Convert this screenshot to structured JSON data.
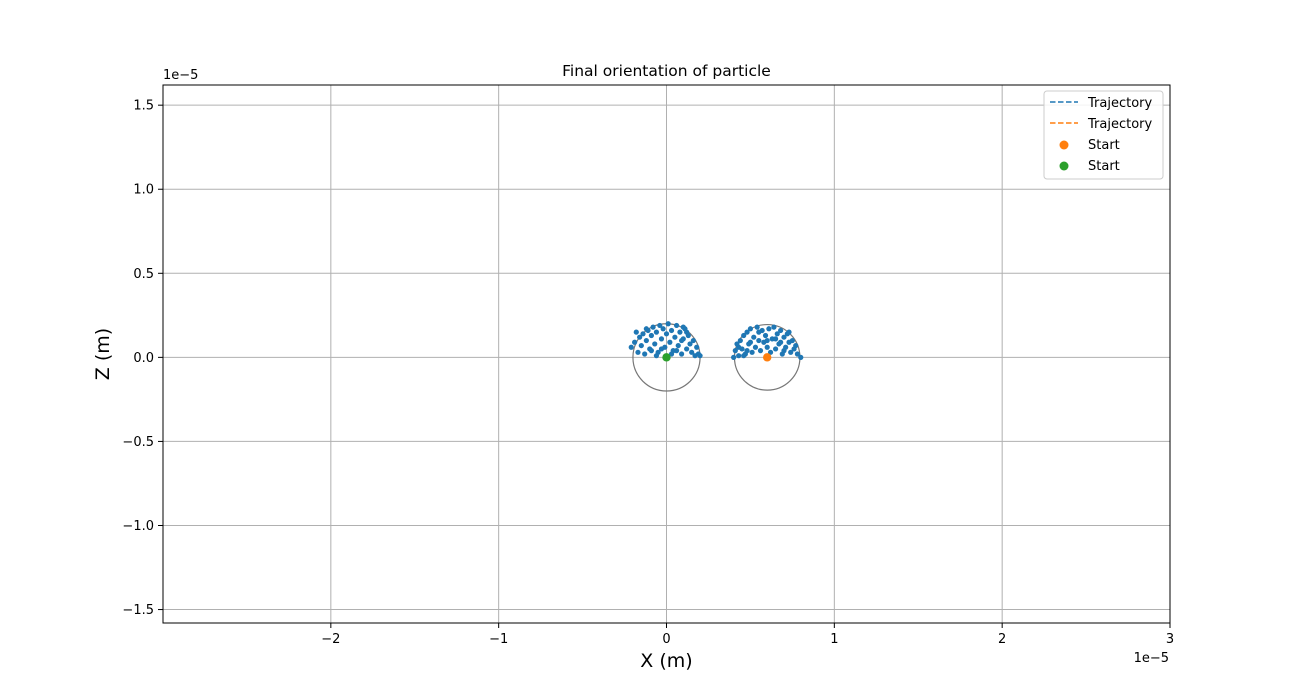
{
  "chart_data": {
    "type": "scatter",
    "title": "Final orientation of particle",
    "xlabel": "X (m)",
    "ylabel": "Z (m)",
    "x_offset_label": "1e−5",
    "y_offset_label": "1e−5",
    "xlim": [
      -3e-05,
      3e-05
    ],
    "ylim": [
      -1.58e-05,
      1.62e-05
    ],
    "xticks": [
      -2e-05,
      -1e-05,
      0,
      1e-05,
      2e-05,
      3e-05
    ],
    "xtick_labels": [
      "−2",
      "−1",
      "0",
      "1",
      "2",
      "3"
    ],
    "yticks": [
      -1.5e-05,
      -1e-05,
      -5e-06,
      0,
      5e-06,
      1e-05,
      1.5e-05
    ],
    "ytick_labels": [
      "−1.5",
      "−1.0",
      "−0.5",
      "0.0",
      "0.5",
      "1.0",
      "1.5"
    ],
    "grid": true,
    "legend_position": "upper right",
    "legend": [
      {
        "label": "Trajectory",
        "kind": "dashed-line",
        "color": "#1f77b4"
      },
      {
        "label": "Trajectory",
        "kind": "dashed-line",
        "color": "#ff7f0e"
      },
      {
        "label": "Start",
        "kind": "marker",
        "color": "#ff7f0e"
      },
      {
        "label": "Start",
        "kind": "marker",
        "color": "#2ca02c"
      }
    ],
    "circles": [
      {
        "cx": 0,
        "cz": 0,
        "r": 2e-06,
        "color": "#777777"
      },
      {
        "cx": 6e-06,
        "cz": 0,
        "r": 1.95e-06,
        "color": "#777777"
      }
    ],
    "start_points": [
      {
        "name": "Start",
        "x": 6e-06,
        "z": 0,
        "color": "#ff7f0e"
      },
      {
        "name": "Start",
        "x": 0,
        "z": 0,
        "color": "#2ca02c"
      }
    ],
    "orientation_points": {
      "color": "#1f77b4",
      "particle_1": [
        [
          -2.1e-06,
          6e-07
        ],
        [
          -1.9e-06,
          9e-07
        ],
        [
          -1.7e-06,
          3e-07
        ],
        [
          -1.6e-06,
          1.2e-06
        ],
        [
          -1.5e-06,
          7e-07
        ],
        [
          -1.4e-06,
          1.4e-06
        ],
        [
          -1.3e-06,
          2e-07
        ],
        [
          -1.2e-06,
          1e-06
        ],
        [
          -1.1e-06,
          1.6e-06
        ],
        [
          -1e-06,
          5e-07
        ],
        [
          -9e-07,
          1.3e-06
        ],
        [
          -8e-07,
          1.8e-06
        ],
        [
          -7e-07,
          8e-07
        ],
        [
          -6e-07,
          1.5e-06
        ],
        [
          -5e-07,
          3e-07
        ],
        [
          -4e-07,
          1.9e-06
        ],
        [
          -3e-07,
          1.1e-06
        ],
        [
          -2e-07,
          1.7e-06
        ],
        [
          -1e-07,
          6e-07
        ],
        [
          0.0,
          1.4e-06
        ],
        [
          1e-07,
          2e-06
        ],
        [
          2e-07,
          9e-07
        ],
        [
          3e-07,
          1.6e-06
        ],
        [
          4e-07,
          4e-07
        ],
        [
          5e-07,
          1.2e-06
        ],
        [
          6e-07,
          1.9e-06
        ],
        [
          7e-07,
          7e-07
        ],
        [
          8e-07,
          1.5e-06
        ],
        [
          9e-07,
          2e-07
        ],
        [
          1e-06,
          1.1e-06
        ],
        [
          1.1e-06,
          1.7e-06
        ],
        [
          1.2e-06,
          5e-07
        ],
        [
          1.3e-06,
          1.3e-06
        ],
        [
          1.4e-06,
          8e-07
        ],
        [
          1.5e-06,
          3e-07
        ],
        [
          1.6e-06,
          1e-06
        ],
        [
          1.7e-06,
          1e-07
        ],
        [
          1.8e-06,
          6e-07
        ],
        [
          1.9e-06,
          2e-07
        ],
        [
          2e-06,
          1e-07
        ],
        [
          -1.8e-06,
          1.5e-06
        ],
        [
          -6e-07,
          1e-07
        ],
        [
          3e-07,
          2e-07
        ],
        [
          1e-06,
          1.8e-06
        ],
        [
          -1.2e-06,
          1.7e-06
        ],
        [
          -3e-07,
          5e-07
        ],
        [
          6e-07,
          4e-07
        ],
        [
          1.2e-06,
          1.5e-06
        ],
        [
          -9e-07,
          4e-07
        ],
        [
          9e-07,
          1e-06
        ]
      ],
      "particle_2": [
        [
          4e-06,
          0.0
        ],
        [
          4.1e-06,
          4e-07
        ],
        [
          4.2e-06,
          8e-07
        ],
        [
          4.3e-06,
          1e-07
        ],
        [
          4.4e-06,
          1e-06
        ],
        [
          4.5e-06,
          5e-07
        ],
        [
          4.6e-06,
          1.3e-06
        ],
        [
          4.7e-06,
          2e-07
        ],
        [
          4.8e-06,
          1.5e-06
        ],
        [
          4.9e-06,
          8e-07
        ],
        [
          5e-06,
          1.7e-06
        ],
        [
          5.1e-06,
          3e-07
        ],
        [
          5.2e-06,
          1.2e-06
        ],
        [
          5.3e-06,
          6e-07
        ],
        [
          5.4e-06,
          1.8e-06
        ],
        [
          5.5e-06,
          1e-06
        ],
        [
          5.6e-06,
          4e-07
        ],
        [
          5.7e-06,
          1.6e-06
        ],
        [
          5.8e-06,
          9e-07
        ],
        [
          5.9e-06,
          1.3e-06
        ],
        [
          6e-06,
          6e-07
        ],
        [
          6.1e-06,
          1.7e-06
        ],
        [
          6.2e-06,
          3e-07
        ],
        [
          6.3e-06,
          1.1e-06
        ],
        [
          6.4e-06,
          1.8e-06
        ],
        [
          6.5e-06,
          5e-07
        ],
        [
          6.6e-06,
          1.4e-06
        ],
        [
          6.7e-06,
          8e-07
        ],
        [
          6.8e-06,
          1.6e-06
        ],
        [
          6.9e-06,
          2e-07
        ],
        [
          7e-06,
          1.2e-06
        ],
        [
          7.1e-06,
          6e-07
        ],
        [
          7.2e-06,
          1.4e-06
        ],
        [
          7.3e-06,
          9e-07
        ],
        [
          7.4e-06,
          3e-07
        ],
        [
          7.5e-06,
          1e-06
        ],
        [
          7.6e-06,
          5e-07
        ],
        [
          7.7e-06,
          7e-07
        ],
        [
          7.8e-06,
          2e-07
        ],
        [
          8e-06,
          0.0
        ],
        [
          4.3e-06,
          6e-07
        ],
        [
          4.6e-06,
          1e-07
        ],
        [
          5e-06,
          9e-07
        ],
        [
          5.5e-06,
          1.5e-06
        ],
        [
          6e-06,
          1e-06
        ],
        [
          6.5e-06,
          1.1e-06
        ],
        [
          7e-06,
          4e-07
        ],
        [
          7.3e-06,
          1.5e-06
        ],
        [
          4.8e-06,
          4e-07
        ],
        [
          6.8e-06,
          9e-07
        ]
      ]
    }
  }
}
